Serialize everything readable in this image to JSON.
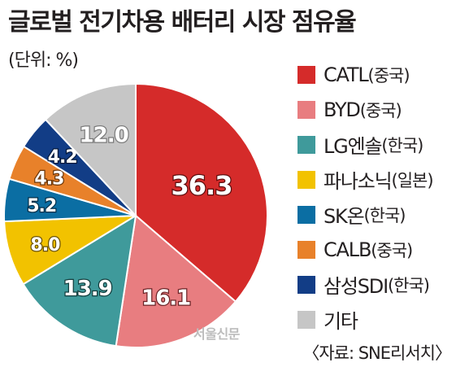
{
  "title": "글로벌 전기차용 배터리 시장 점유율",
  "unit_label": "(단위: %)",
  "source": "〈자료: SNE리서치〉",
  "watermark": "서울신문",
  "chart_data": {
    "type": "pie",
    "title": "글로벌 전기차용 배터리 시장 점유율",
    "unit": "%",
    "legend_position": "right",
    "series": [
      {
        "name": "CATL",
        "region": "(중국)",
        "value": 36.3,
        "label": "36.3",
        "color": "#d52b2a",
        "label_color": "#ffffff",
        "label_outline": "#5a0d0d"
      },
      {
        "name": "BYD",
        "region": "(중국)",
        "value": 16.1,
        "label": "16.1",
        "color": "#e87d80",
        "label_color": "#ffffff",
        "label_outline": "#6a2326"
      },
      {
        "name": "LG엔솔",
        "region": "(한국)",
        "value": 13.9,
        "label": "13.9",
        "color": "#3f9a9b",
        "label_color": "#ffffff",
        "label_outline": "#123c3c"
      },
      {
        "name": "파나소닉",
        "region": "(일본)",
        "value": 8.0,
        "label": "8.0",
        "color": "#f2c200",
        "label_color": "#ffffff",
        "label_outline": "#6b5200"
      },
      {
        "name": "SK온",
        "region": "(한국)",
        "value": 5.2,
        "label": "5.2",
        "color": "#0b6ea3",
        "label_color": "#ffffff",
        "label_outline": "#05304a"
      },
      {
        "name": "CALB",
        "region": "(중국)",
        "value": 4.3,
        "label": "4.3",
        "color": "#e8812a",
        "label_color": "#ffffff",
        "label_outline": "#6a3508"
      },
      {
        "name": "삼성SDI",
        "region": "(한국)",
        "value": 4.2,
        "label": "4.2",
        "color": "#123d86",
        "label_color": "#ffffff",
        "label_outline": "#061a3c"
      },
      {
        "name": "기타",
        "region": "",
        "value": 12.0,
        "label": "12.0",
        "color": "#c6c6c6",
        "label_color": "#ffffff",
        "label_outline": "#7a7a7a"
      }
    ]
  }
}
